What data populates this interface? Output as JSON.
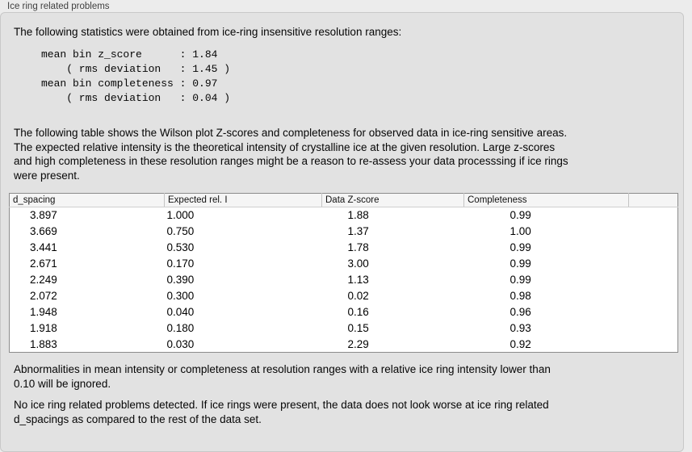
{
  "panel": {
    "title": "Ice ring related problems"
  },
  "intro": {
    "text": "The following statistics were obtained from ice-ring insensitive resolution ranges:"
  },
  "stats_block": {
    "text": "mean bin z_score      : 1.84\n    ( rms deviation   : 1.45 )\nmean bin completeness : 0.97\n    ( rms deviation   : 0.04 )",
    "values": {
      "mean_bin_z_score": "1.84",
      "z_score_rms_deviation": "1.45",
      "mean_bin_completeness": "0.97",
      "completeness_rms_deviation": "0.04"
    }
  },
  "description": {
    "text": "The following table shows the Wilson plot Z-scores and completeness for observed data in ice-ring sensitive areas.\nThe expected relative intensity is the theoretical intensity of crystalline ice at the given resolution. Large z-scores\nand high completeness in these resolution ranges might be a reason to re-assess your data processsing if ice rings\nwere present."
  },
  "table": {
    "headers": [
      "d_spacing",
      "Expected rel. I",
      "Data Z-score",
      "Completeness",
      ""
    ],
    "rows": [
      [
        "3.897",
        "1.000",
        "1.88",
        "0.99"
      ],
      [
        "3.669",
        "0.750",
        "1.37",
        "1.00"
      ],
      [
        "3.441",
        "0.530",
        "1.78",
        "0.99"
      ],
      [
        "2.671",
        "0.170",
        "3.00",
        "0.99"
      ],
      [
        "2.249",
        "0.390",
        "1.13",
        "0.99"
      ],
      [
        "2.072",
        "0.300",
        "0.02",
        "0.98"
      ],
      [
        "1.948",
        "0.040",
        "0.16",
        "0.96"
      ],
      [
        "1.918",
        "0.180",
        "0.15",
        "0.93"
      ],
      [
        "1.883",
        "0.030",
        "2.29",
        "0.92"
      ]
    ]
  },
  "abnormalities_note": {
    "text": "Abnormalities in mean intensity or completeness at resolution ranges with a relative ice ring intensity lower than\n0.10 will be ignored."
  },
  "conclusion": {
    "text": "No ice ring related problems detected. If ice rings were present, the data does not look worse at ice ring related\nd_spacings as compared to the rest of the data set."
  }
}
